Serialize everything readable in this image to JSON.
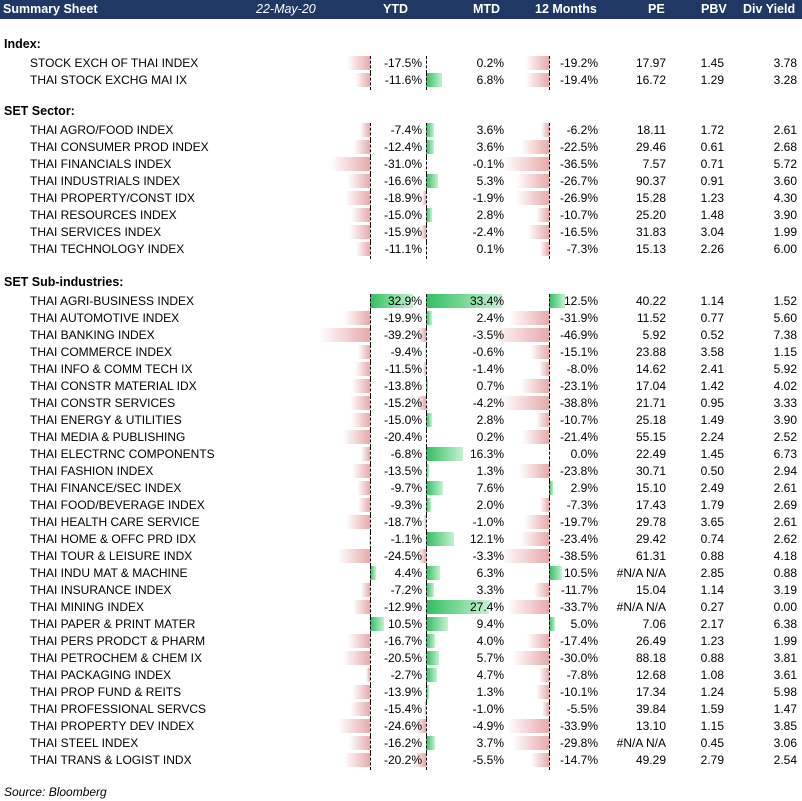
{
  "header": {
    "title": "Summary Sheet",
    "date": "22-May-20",
    "cols": [
      "YTD",
      "MTD",
      "12 Months",
      "PE",
      "PBV",
      "Div Yield"
    ]
  },
  "sections": [
    {
      "title": "Index:",
      "rows": [
        {
          "name": "STOCK EXCH OF THAI INDEX",
          "ytd": "-17.5%",
          "mtd": "0.2%",
          "m12": "-19.2%",
          "pe": "17.97",
          "pbv": "1.45",
          "dy": "3.78"
        },
        {
          "name": "THAI STOCK EXCHG MAI IX",
          "ytd": "-11.6%",
          "mtd": "6.8%",
          "m12": "-19.4%",
          "pe": "16.72",
          "pbv": "1.29",
          "dy": "3.28"
        }
      ]
    },
    {
      "title": "SET Sector:",
      "rows": [
        {
          "name": "THAI AGRO/FOOD INDEX",
          "ytd": "-7.4%",
          "mtd": "3.6%",
          "m12": "-6.2%",
          "pe": "18.11",
          "pbv": "1.72",
          "dy": "2.61"
        },
        {
          "name": "THAI CONSUMER PROD INDEX",
          "ytd": "-12.4%",
          "mtd": "3.6%",
          "m12": "-22.5%",
          "pe": "29.46",
          "pbv": "0.61",
          "dy": "2.68"
        },
        {
          "name": "THAI FINANCIALS INDEX",
          "ytd": "-31.0%",
          "mtd": "-0.1%",
          "m12": "-36.5%",
          "pe": "7.57",
          "pbv": "0.71",
          "dy": "5.72"
        },
        {
          "name": "THAI INDUSTRIALS INDEX",
          "ytd": "-16.6%",
          "mtd": "5.3%",
          "m12": "-26.7%",
          "pe": "90.37",
          "pbv": "0.91",
          "dy": "3.60"
        },
        {
          "name": "THAI PROPERTY/CONST IDX",
          "ytd": "-18.9%",
          "mtd": "-1.9%",
          "m12": "-26.9%",
          "pe": "15.28",
          "pbv": "1.23",
          "dy": "4.30"
        },
        {
          "name": "THAI RESOURCES INDEX",
          "ytd": "-15.0%",
          "mtd": "2.8%",
          "m12": "-10.7%",
          "pe": "25.20",
          "pbv": "1.48",
          "dy": "3.90"
        },
        {
          "name": "THAI SERVICES INDEX",
          "ytd": "-15.9%",
          "mtd": "-2.4%",
          "m12": "-16.5%",
          "pe": "31.83",
          "pbv": "3.04",
          "dy": "1.99"
        },
        {
          "name": "THAI TECHNOLOGY INDEX",
          "ytd": "-11.1%",
          "mtd": "0.1%",
          "m12": "-7.3%",
          "pe": "15.13",
          "pbv": "2.26",
          "dy": "6.00"
        }
      ]
    },
    {
      "title": "SET Sub-industries:",
      "rows": [
        {
          "name": "THAI AGRI-BUSINESS INDEX",
          "ytd": "32.9%",
          "mtd": "33.4%",
          "m12": "12.5%",
          "pe": "40.22",
          "pbv": "1.14",
          "dy": "1.52"
        },
        {
          "name": "THAI AUTOMOTIVE INDEX",
          "ytd": "-19.9%",
          "mtd": "2.4%",
          "m12": "-31.9%",
          "pe": "11.52",
          "pbv": "0.77",
          "dy": "5.60"
        },
        {
          "name": "THAI BANKING INDEX",
          "ytd": "-39.2%",
          "mtd": "-3.5%",
          "m12": "-46.9%",
          "pe": "5.92",
          "pbv": "0.52",
          "dy": "7.38"
        },
        {
          "name": "THAI COMMERCE INDEX",
          "ytd": "-9.4%",
          "mtd": "-0.6%",
          "m12": "-15.1%",
          "pe": "23.88",
          "pbv": "3.58",
          "dy": "1.15"
        },
        {
          "name": "THAI INFO & COMM TECH IX",
          "ytd": "-11.5%",
          "mtd": "-1.4%",
          "m12": "-8.0%",
          "pe": "14.62",
          "pbv": "2.41",
          "dy": "5.92"
        },
        {
          "name": "THAI CONSTR MATERIAL IDX",
          "ytd": "-13.8%",
          "mtd": "0.7%",
          "m12": "-23.1%",
          "pe": "17.04",
          "pbv": "1.42",
          "dy": "4.02"
        },
        {
          "name": "THAI CONSTR SERVICES",
          "ytd": "-15.2%",
          "mtd": "-4.2%",
          "m12": "-38.8%",
          "pe": "21.71",
          "pbv": "0.95",
          "dy": "3.33"
        },
        {
          "name": "THAI ENERGY & UTILITIES",
          "ytd": "-15.0%",
          "mtd": "2.8%",
          "m12": "-10.7%",
          "pe": "25.18",
          "pbv": "1.49",
          "dy": "3.90"
        },
        {
          "name": "THAI MEDIA & PUBLISHING",
          "ytd": "-20.4%",
          "mtd": "0.2%",
          "m12": "-21.4%",
          "pe": "55.15",
          "pbv": "2.24",
          "dy": "2.52"
        },
        {
          "name": "THAI ELECTRNC COMPONENTS",
          "ytd": "-6.8%",
          "mtd": "16.3%",
          "m12": "0.0%",
          "pe": "22.49",
          "pbv": "1.45",
          "dy": "6.73"
        },
        {
          "name": "THAI FASHION INDEX",
          "ytd": "-13.5%",
          "mtd": "1.3%",
          "m12": "-23.8%",
          "pe": "30.71",
          "pbv": "0.50",
          "dy": "2.94"
        },
        {
          "name": "THAI FINANCE/SEC INDEX",
          "ytd": "-9.7%",
          "mtd": "7.6%",
          "m12": "2.9%",
          "pe": "15.10",
          "pbv": "2.49",
          "dy": "2.61"
        },
        {
          "name": "THAI FOOD/BEVERAGE INDEX",
          "ytd": "-9.3%",
          "mtd": "2.0%",
          "m12": "-7.3%",
          "pe": "17.43",
          "pbv": "1.79",
          "dy": "2.69"
        },
        {
          "name": "THAI HEALTH CARE SERVICE",
          "ytd": "-18.7%",
          "mtd": "-1.0%",
          "m12": "-19.7%",
          "pe": "29.78",
          "pbv": "3.65",
          "dy": "2.61"
        },
        {
          "name": "THAI HOME & OFFC PRD IDX",
          "ytd": "-1.1%",
          "mtd": "12.1%",
          "m12": "-23.4%",
          "pe": "29.42",
          "pbv": "0.74",
          "dy": "2.62"
        },
        {
          "name": "THAI TOUR & LEISURE INDX",
          "ytd": "-24.5%",
          "mtd": "-3.3%",
          "m12": "-38.5%",
          "pe": "61.31",
          "pbv": "0.88",
          "dy": "4.18"
        },
        {
          "name": "THAI INDU MAT & MACHINE",
          "ytd": "4.4%",
          "mtd": "6.3%",
          "m12": "10.5%",
          "pe": "#N/A N/A",
          "pbv": "2.85",
          "dy": "0.88"
        },
        {
          "name": "THAI INSURANCE INDEX",
          "ytd": "-7.2%",
          "mtd": "3.3%",
          "m12": "-11.7%",
          "pe": "15.04",
          "pbv": "1.14",
          "dy": "3.19"
        },
        {
          "name": "THAI MINING INDEX",
          "ytd": "-12.9%",
          "mtd": "27.4%",
          "m12": "-33.7%",
          "pe": "#N/A N/A",
          "pbv": "0.27",
          "dy": "0.00"
        },
        {
          "name": "THAI PAPER & PRINT MATER",
          "ytd": "10.5%",
          "mtd": "9.4%",
          "m12": "5.0%",
          "pe": "7.06",
          "pbv": "2.17",
          "dy": "6.38"
        },
        {
          "name": "THAI PERS PRODCT & PHARM",
          "ytd": "-16.7%",
          "mtd": "4.0%",
          "m12": "-17.4%",
          "pe": "26.49",
          "pbv": "1.23",
          "dy": "1.99"
        },
        {
          "name": "THAI PETROCHEM & CHEM IX",
          "ytd": "-20.5%",
          "mtd": "5.7%",
          "m12": "-30.0%",
          "pe": "88.18",
          "pbv": "0.88",
          "dy": "3.81"
        },
        {
          "name": "THAI PACKAGING INDEX",
          "ytd": "-2.7%",
          "mtd": "4.7%",
          "m12": "-7.8%",
          "pe": "12.68",
          "pbv": "1.08",
          "dy": "3.61"
        },
        {
          "name": "THAI PROP FUND & REITS",
          "ytd": "-13.9%",
          "mtd": "1.3%",
          "m12": "-10.1%",
          "pe": "17.34",
          "pbv": "1.24",
          "dy": "5.98"
        },
        {
          "name": "THAI PROFESSIONAL SERVCS",
          "ytd": "-15.4%",
          "mtd": "-1.0%",
          "m12": "-5.5%",
          "pe": "39.84",
          "pbv": "1.59",
          "dy": "1.47"
        },
        {
          "name": "THAI PROPERTY DEV INDEX",
          "ytd": "-24.6%",
          "mtd": "-4.9%",
          "m12": "-33.9%",
          "pe": "13.10",
          "pbv": "1.15",
          "dy": "3.85"
        },
        {
          "name": "THAI STEEL INDEX",
          "ytd": "-16.2%",
          "mtd": "3.7%",
          "m12": "-29.8%",
          "pe": "#N/A N/A",
          "pbv": "0.45",
          "dy": "3.06"
        },
        {
          "name": "THAI TRANS & LOGIST INDX",
          "ytd": "-20.2%",
          "mtd": "-5.5%",
          "m12": "-14.7%",
          "pe": "49.29",
          "pbv": "2.79",
          "dy": "2.54"
        }
      ]
    }
  ],
  "source": "Source: Bloomberg",
  "colors": {
    "header_bg": "#1f3864",
    "neg_bar": "#e8a9ab",
    "pos_bar": "#2fbf5e"
  }
}
